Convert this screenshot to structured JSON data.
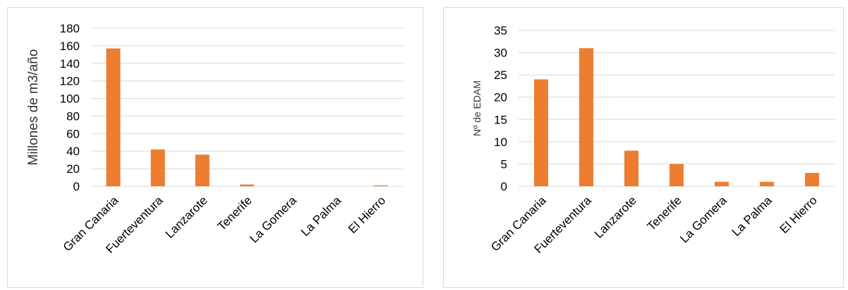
{
  "chart_data": [
    {
      "type": "bar",
      "title": "",
      "xlabel": "",
      "ylabel": "Millones de m3/año",
      "categories": [
        "Gran Canaria",
        "Fuerteventura",
        "Lanzarote",
        "Tenerife",
        "La Gomera",
        "La Palma",
        "El Hierro"
      ],
      "series": [
        {
          "values": [
            157,
            42,
            36,
            2,
            0,
            0,
            1
          ]
        }
      ],
      "ylim": [
        0,
        180
      ],
      "yticks": [
        "0",
        "20",
        "40",
        "60",
        "80",
        "100",
        "120",
        "140",
        "160",
        "180"
      ],
      "grid": true,
      "legend": "none",
      "bar_color": "#ED7D31"
    },
    {
      "type": "bar",
      "title": "",
      "xlabel": "",
      "ylabel": "Nº de EDAM",
      "categories": [
        "Gran Canaria",
        "Fuerteventura",
        "Lanzarote",
        "Tenerife",
        "La Gomera",
        "La Palma",
        "El Hierro"
      ],
      "series": [
        {
          "values": [
            24,
            31,
            8,
            5,
            1,
            1,
            3
          ]
        }
      ],
      "ylim": [
        0,
        35
      ],
      "yticks": [
        "0",
        "5",
        "10",
        "15",
        "20",
        "25",
        "30",
        "35"
      ],
      "grid": true,
      "legend": "none",
      "bar_color": "#ED7D31"
    }
  ]
}
